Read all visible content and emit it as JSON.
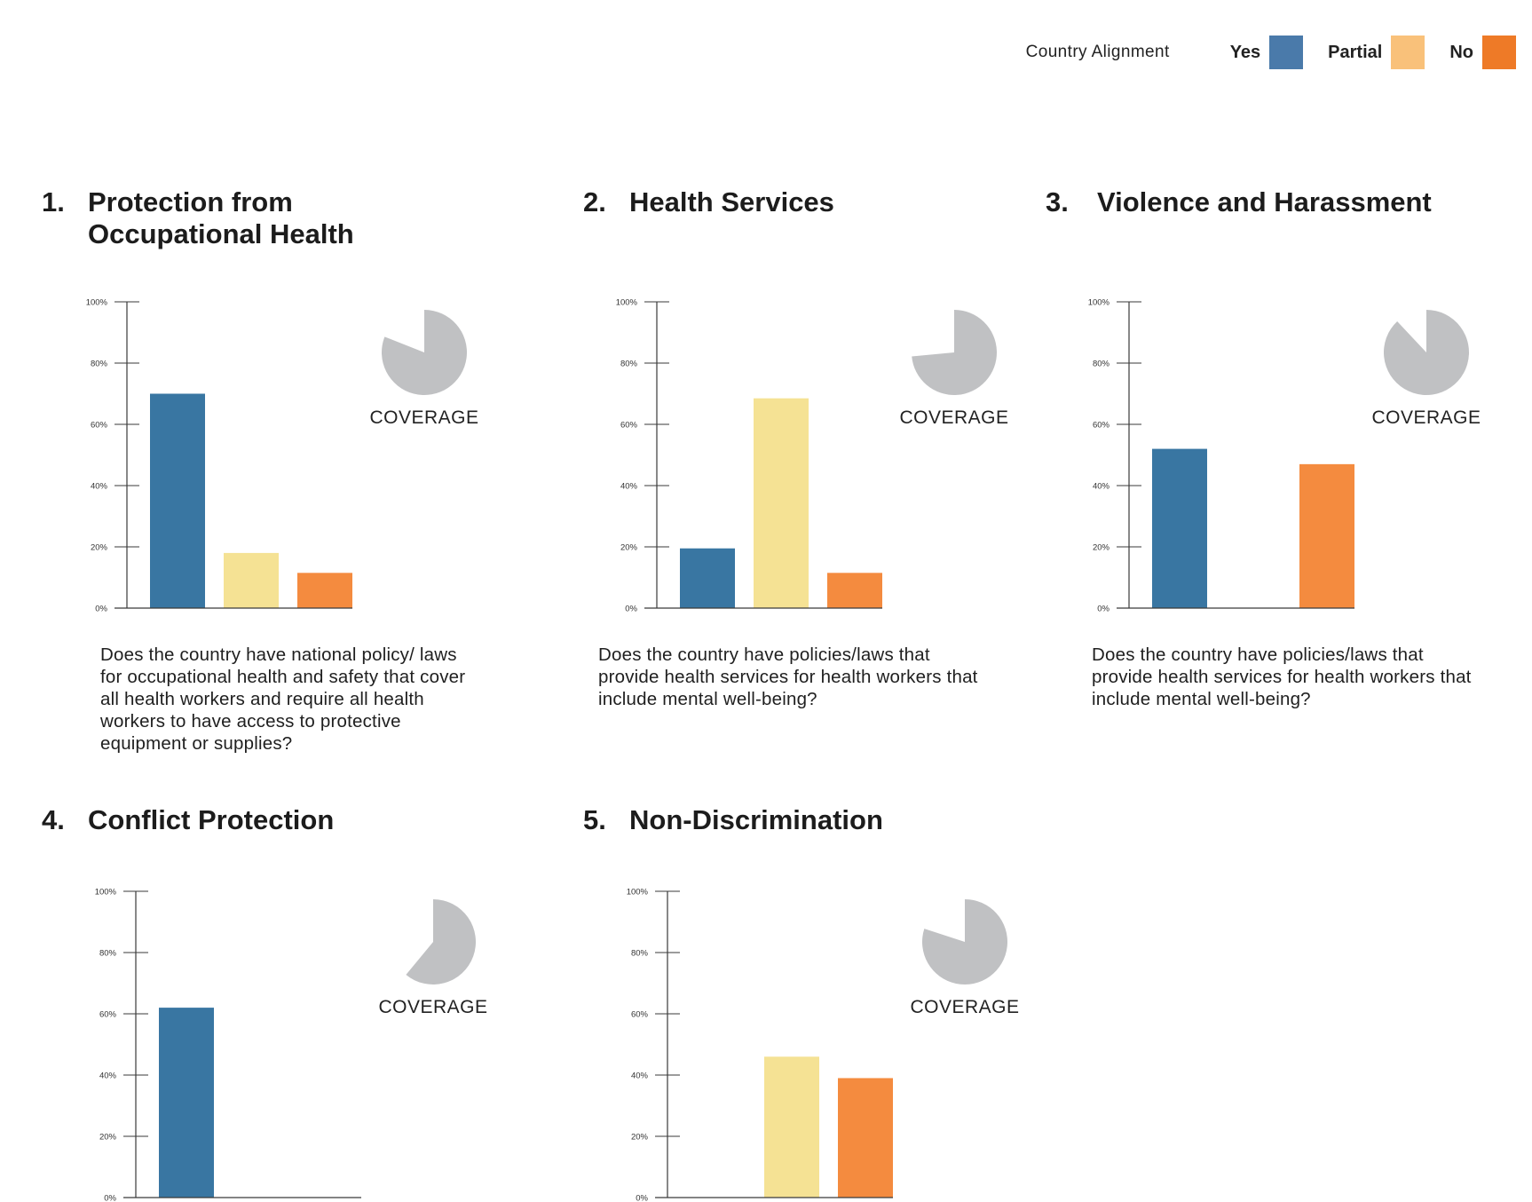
{
  "legend": {
    "title": "Country Alignment",
    "items": [
      {
        "label": "Yes",
        "color": "#4a7aaa"
      },
      {
        "label": "Partial",
        "color": "#f9c17a"
      },
      {
        "label": "No",
        "color": "#ee7a27"
      }
    ]
  },
  "sections": [
    {
      "number": "1.",
      "title": "Protection from Occupational Health",
      "question": "Does the country have national policy/ laws for occupational health and safety that cover all health workers and require all health workers to have access to protective equipment or supplies?"
    },
    {
      "number": "2.",
      "title": "Health Services",
      "question": "Does the country have policies/laws that provide health services for health workers that include mental well-being?"
    },
    {
      "number": "3.",
      "title": "Violence and Harassment",
      "question": "Does the country have policies/laws that provide health services for health workers that include mental well-being?"
    },
    {
      "number": "4.",
      "title": "Conflict Protection",
      "question": ""
    },
    {
      "number": "5.",
      "title": "Non-Discrimination",
      "question": ""
    }
  ],
  "coverage_label": "COVERAGE",
  "chart_data": [
    {
      "type": "bar",
      "categories": [
        "Yes",
        "Partial",
        "No"
      ],
      "values": [
        70,
        18,
        11.5
      ],
      "colors": [
        "#3976a2",
        "#f5e294",
        "#f48b3f"
      ],
      "ylim": [
        0,
        100
      ],
      "yticks": [
        "0%",
        "20%",
        "40%",
        "60%",
        "80%",
        "100%"
      ],
      "coverage": 0.81
    },
    {
      "type": "bar",
      "categories": [
        "Yes",
        "Partial",
        "No"
      ],
      "values": [
        19.5,
        68.5,
        11.5
      ],
      "colors": [
        "#3976a2",
        "#f5e294",
        "#f48b3f"
      ],
      "ylim": [
        0,
        100
      ],
      "yticks": [
        "0%",
        "20%",
        "40%",
        "60%",
        "80%",
        "100%"
      ],
      "coverage": 0.735
    },
    {
      "type": "bar",
      "categories": [
        "Yes",
        "Partial",
        "No"
      ],
      "values": [
        52,
        0,
        47
      ],
      "colors": [
        "#3976a2",
        "#f5e294",
        "#f48b3f"
      ],
      "ylim": [
        0,
        100
      ],
      "yticks": [
        "0%",
        "20%",
        "40%",
        "60%",
        "80%",
        "100%"
      ],
      "coverage": 0.88
    },
    {
      "type": "bar",
      "categories": [
        "Yes",
        "Partial",
        "No"
      ],
      "values": [
        62,
        0,
        0
      ],
      "colors": [
        "#3976a2",
        "#f5e294",
        "#f48b3f"
      ],
      "ylim": [
        0,
        100
      ],
      "yticks": [
        "0%",
        "20%",
        "40%",
        "60%",
        "80%",
        "100%"
      ],
      "coverage": 0.61
    },
    {
      "type": "bar",
      "categories": [
        "Yes",
        "Partial",
        "No"
      ],
      "values": [
        0,
        46,
        39
      ],
      "colors": [
        "#3976a2",
        "#f5e294",
        "#f48b3f"
      ],
      "ylim": [
        0,
        100
      ],
      "yticks": [
        "0%",
        "20%",
        "40%",
        "60%",
        "80%",
        "100%"
      ],
      "coverage": 0.8
    }
  ]
}
